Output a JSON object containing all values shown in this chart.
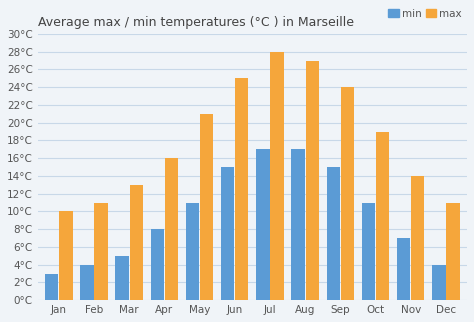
{
  "months": [
    "Jan",
    "Feb",
    "Mar",
    "Apr",
    "May",
    "Jun",
    "Jul",
    "Aug",
    "Sep",
    "Oct",
    "Nov",
    "Dec"
  ],
  "min_temps": [
    3,
    4,
    5,
    8,
    11,
    15,
    17,
    17,
    15,
    11,
    7,
    4
  ],
  "max_temps": [
    10,
    11,
    13,
    16,
    21,
    25,
    28,
    27,
    24,
    19,
    14,
    11
  ],
  "min_color": "#5b9bd5",
  "max_color": "#f5a63b",
  "title": "Average max / min temperatures (°C ) in Marseille",
  "ylim": [
    0,
    30
  ],
  "yticks": [
    0,
    2,
    4,
    6,
    8,
    10,
    12,
    14,
    16,
    18,
    20,
    22,
    24,
    26,
    28,
    30
  ],
  "background_color": "#f0f4f8",
  "grid_color": "#c8d8e8",
  "legend_min": "min",
  "legend_max": "max",
  "title_fontsize": 9,
  "tick_fontsize": 7.5
}
